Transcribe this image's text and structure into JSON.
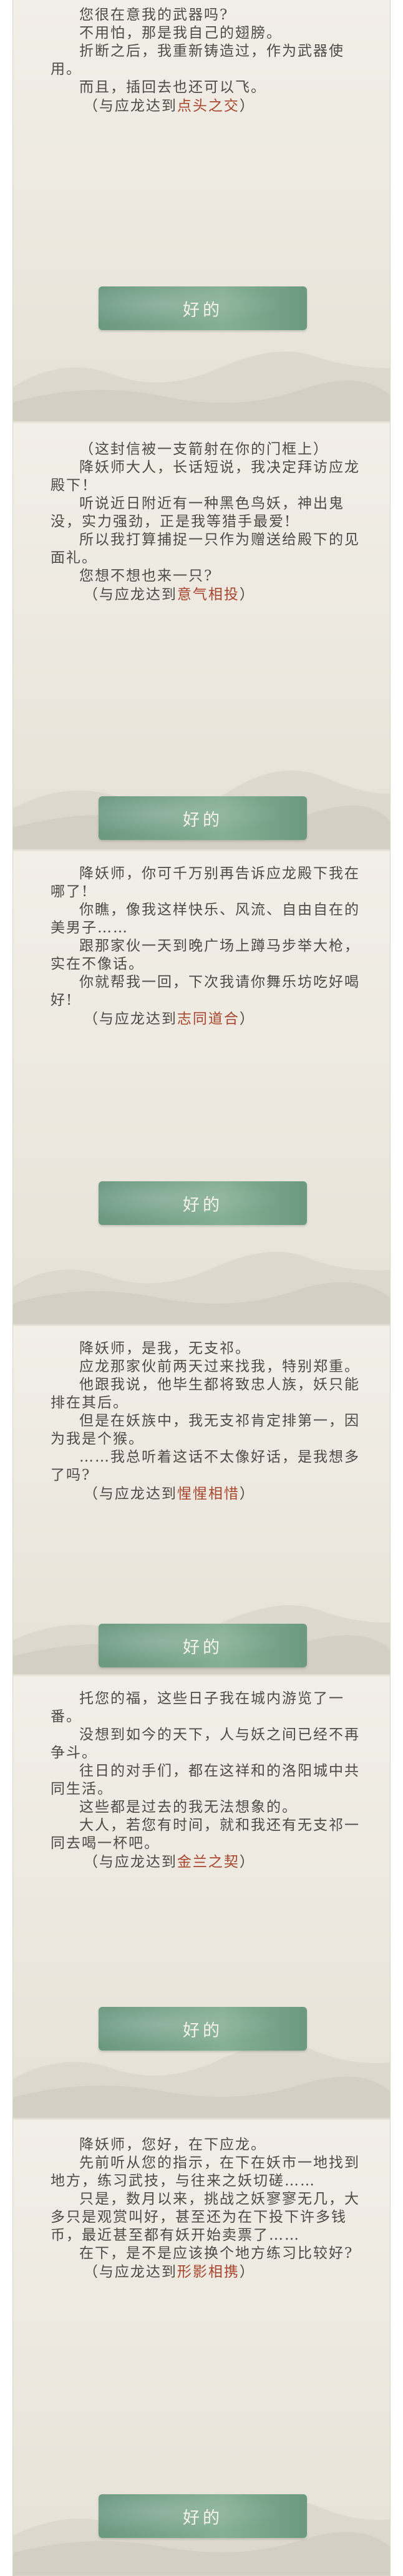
{
  "cards": [
    {
      "lines": [
        "您很在意我的武器吗?",
        "不用怕，那是我自己的翅膀。",
        "折断之后，我重新铸造过，作为武器使用。",
        "而且，插回去也还可以飞。"
      ],
      "reward_prefix": "（与应龙达到",
      "reward_bond": "点头之交",
      "reward_suffix": "）",
      "button_label": "好的"
    },
    {
      "lines": [
        "（这封信被一支箭射在你的门框上）",
        "降妖师大人，长话短说，我决定拜访应龙殿下！",
        "听说近日附近有一种黑色鸟妖，神出鬼没，实力强劲，正是我等猎手最爱!",
        "所以我打算捕捉一只作为赠送给殿下的见面礼。",
        "您想不想也来一只?"
      ],
      "reward_prefix": "（与应龙达到",
      "reward_bond": "意气相投",
      "reward_suffix": "）",
      "button_label": "好的"
    },
    {
      "lines": [
        "降妖师，你可千万别再告诉应龙殿下我在哪了!",
        "你瞧，像我这样快乐、风流、自由自在的美男子……",
        "跟那家伙一天到晚广场上蹲马步举大枪，实在不像话。",
        "你就帮我一回，下次我请你舞乐坊吃好喝好!"
      ],
      "reward_prefix": "（与应龙达到",
      "reward_bond": "志同道合",
      "reward_suffix": "）",
      "button_label": "好的"
    },
    {
      "lines": [
        "降妖师，是我，无支祁。",
        "应龙那家伙前两天过来找我，特别郑重。",
        "他跟我说，他毕生都将致忠人族，妖只能排在其后。",
        "但是在妖族中，我无支祁肯定排第一，因为我是个猴。",
        "……我总听着这话不太像好话，是我想多了吗?"
      ],
      "reward_prefix": "（与应龙达到",
      "reward_bond": "惺惺相惜",
      "reward_suffix": "）",
      "button_label": "好的"
    },
    {
      "lines": [
        "托您的福，这些日子我在城内游览了一番。",
        "没想到如今的天下，人与妖之间已经不再争斗。",
        "往日的对手们，都在这祥和的洛阳城中共同生活。",
        "这些都是过去的我无法想象的。",
        "大人，若您有时间，就和我还有无支祁一同去喝一杯吧。"
      ],
      "reward_prefix": "（与应龙达到",
      "reward_bond": "金兰之契",
      "reward_suffix": "）",
      "button_label": "好的"
    },
    {
      "lines": [
        "降妖师，您好，在下应龙。",
        "先前听从您的指示，在下在妖市一地找到地方，练习武技，与往来之妖切磋……",
        "只是，数月以来，挑战之妖寥寥无几，大多只是观赏叫好，甚至还为在下投下许多钱币，最近甚至都有妖开始卖票了……",
        "在下，是不是应该换个地方练习比较好?"
      ],
      "reward_prefix": "（与应龙达到",
      "reward_bond": "形影相携",
      "reward_suffix": "）",
      "button_label": "好的"
    }
  ]
}
